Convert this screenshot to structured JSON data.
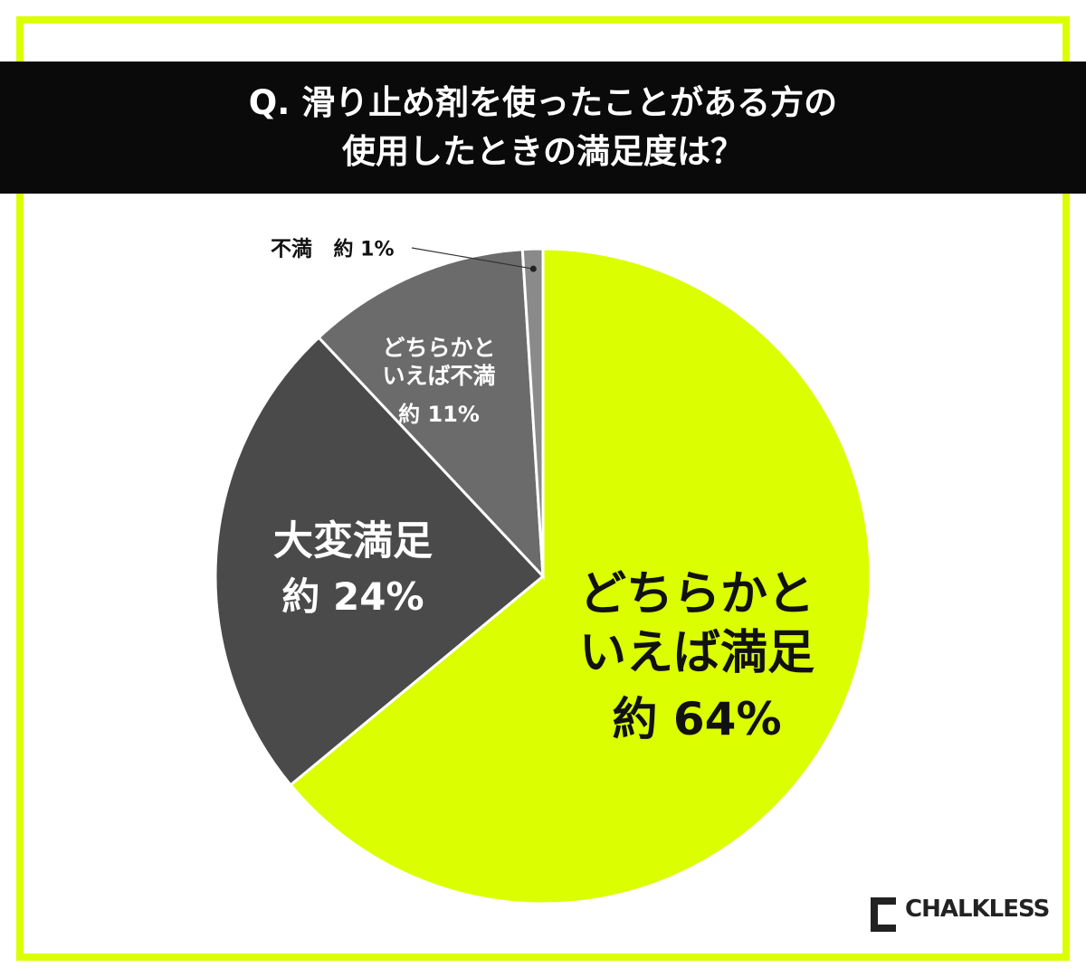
{
  "chart_data": {
    "type": "pie",
    "title": "Q. 滑り止め剤を使ったことがある方の\n使用したときの満足度は？",
    "categories": [
      "どちらかと\nいえば満足",
      "大変満足",
      "どちらかと\nいえば不満",
      "不満"
    ],
    "values": [
      64,
      24,
      11,
      1
    ],
    "value_labels": [
      "約 64%",
      "約 24%",
      "約 11%",
      "約 1%"
    ],
    "colors": [
      "#dbff00",
      "#4a4a4a",
      "#6b6b6b",
      "#8a8a8a"
    ],
    "logo": "CHALKLESS"
  }
}
